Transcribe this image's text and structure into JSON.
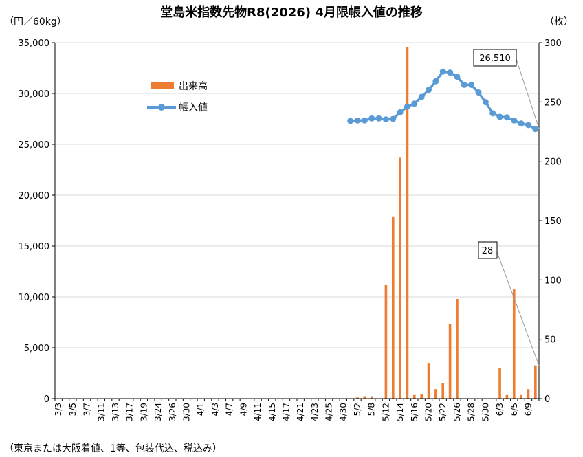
{
  "title": "堂島米指数先物R8(2026) 4月限帳入値の推移",
  "left_unit": "（円／60kg）",
  "right_unit": "（枚）",
  "footnote": "（東京または大阪着値、1等、包装代込、税込み）",
  "callouts": {
    "price": "26,510",
    "volume": "28"
  },
  "colors": {
    "volume": "#ED7D31",
    "price": "#5B9BD5"
  },
  "chart_data": {
    "type": "bar+line",
    "y_left": {
      "ylim": [
        0,
        35000
      ],
      "ticks": [
        0,
        5000,
        10000,
        15000,
        20000,
        25000,
        30000,
        35000
      ],
      "tick_labels": [
        "0",
        "5,000",
        "10,000",
        "15,000",
        "20,000",
        "25,000",
        "30,000",
        "35,000"
      ]
    },
    "y_right": {
      "ylim": [
        0,
        300
      ],
      "ticks": [
        0,
        50,
        100,
        150,
        200,
        250,
        300
      ],
      "tick_labels": [
        "0",
        "50",
        "100",
        "150",
        "200",
        "250",
        "300"
      ]
    },
    "x_labels": [
      "3/3",
      "3/5",
      "3/7",
      "3/11",
      "3/13",
      "3/17",
      "3/19",
      "3/24",
      "3/26",
      "3/30",
      "4/1",
      "4/3",
      "4/7",
      "4/9",
      "4/11",
      "4/15",
      "4/17",
      "4/21",
      "4/23",
      "4/25",
      "4/30",
      "5/2",
      "5/8",
      "5/12",
      "5/14",
      "5/16",
      "5/20",
      "5/22",
      "5/26",
      "5/28",
      "5/30",
      "6/3",
      "6/5",
      "6/9"
    ],
    "x_ticks": [
      {
        "label": "3/3",
        "index": 0
      },
      {
        "label": "3/5",
        "index": 2
      },
      {
        "label": "3/7",
        "index": 4
      },
      {
        "label": "3/11",
        "index": 6
      },
      {
        "label": "3/13",
        "index": 8
      },
      {
        "label": "3/17",
        "index": 10
      },
      {
        "label": "3/19",
        "index": 12
      },
      {
        "label": "3/24",
        "index": 14
      },
      {
        "label": "3/26",
        "index": 16
      },
      {
        "label": "3/30",
        "index": 18
      },
      {
        "label": "4/1",
        "index": 20
      },
      {
        "label": "4/3",
        "index": 22
      },
      {
        "label": "4/7",
        "index": 24
      },
      {
        "label": "4/9",
        "index": 26
      },
      {
        "label": "4/11",
        "index": 28
      },
      {
        "label": "4/15",
        "index": 30
      },
      {
        "label": "4/17",
        "index": 32
      },
      {
        "label": "4/21",
        "index": 34
      },
      {
        "label": "4/23",
        "index": 36
      },
      {
        "label": "4/25",
        "index": 38
      },
      {
        "label": "4/30",
        "index": 40
      },
      {
        "label": "5/2",
        "index": 42
      },
      {
        "label": "5/8",
        "index": 44
      },
      {
        "label": "5/12",
        "index": 46
      },
      {
        "label": "5/14",
        "index": 48
      },
      {
        "label": "5/16",
        "index": 50
      },
      {
        "label": "5/20",
        "index": 52
      },
      {
        "label": "5/22",
        "index": 54
      },
      {
        "label": "5/26",
        "index": 56
      },
      {
        "label": "5/28",
        "index": 58
      },
      {
        "label": "5/30",
        "index": 60
      },
      {
        "label": "6/3",
        "index": 62
      },
      {
        "label": "6/5",
        "index": 64
      },
      {
        "label": "6/9",
        "index": 66
      }
    ],
    "n_days": 68,
    "series": [
      {
        "name": "出来高",
        "type": "bar",
        "axis": "right",
        "points": [
          {
            "i": 42,
            "v": 1
          },
          {
            "i": 43,
            "v": 2
          },
          {
            "i": 44,
            "v": 2
          },
          {
            "i": 45,
            "v": 0
          },
          {
            "i": 46,
            "v": 96
          },
          {
            "i": 47,
            "v": 153
          },
          {
            "i": 48,
            "v": 203
          },
          {
            "i": 49,
            "v": 296
          },
          {
            "i": 50,
            "v": 3
          },
          {
            "i": 51,
            "v": 4
          },
          {
            "i": 52,
            "v": 30
          },
          {
            "i": 53,
            "v": 8
          },
          {
            "i": 54,
            "v": 13
          },
          {
            "i": 55,
            "v": 63
          },
          {
            "i": 56,
            "v": 84
          },
          {
            "i": 57,
            "v": 0
          },
          {
            "i": 58,
            "v": 0
          },
          {
            "i": 59,
            "v": 0
          },
          {
            "i": 60,
            "v": 0
          },
          {
            "i": 61,
            "v": 0
          },
          {
            "i": 62,
            "v": 26
          },
          {
            "i": 63,
            "v": 3
          },
          {
            "i": 64,
            "v": 92
          },
          {
            "i": 65,
            "v": 3
          },
          {
            "i": 66,
            "v": 8
          },
          {
            "i": 67,
            "v": 28
          }
        ]
      },
      {
        "name": "帳入値",
        "type": "line",
        "axis": "left",
        "points": [
          {
            "i": 41,
            "v": 27300
          },
          {
            "i": 42,
            "v": 27350
          },
          {
            "i": 43,
            "v": 27350
          },
          {
            "i": 44,
            "v": 27550
          },
          {
            "i": 45,
            "v": 27550
          },
          {
            "i": 46,
            "v": 27450
          },
          {
            "i": 47,
            "v": 27500
          },
          {
            "i": 48,
            "v": 28150
          },
          {
            "i": 49,
            "v": 28700
          },
          {
            "i": 50,
            "v": 29000
          },
          {
            "i": 51,
            "v": 29650
          },
          {
            "i": 52,
            "v": 30350
          },
          {
            "i": 53,
            "v": 31200
          },
          {
            "i": 54,
            "v": 32150
          },
          {
            "i": 55,
            "v": 32050
          },
          {
            "i": 56,
            "v": 31650
          },
          {
            "i": 57,
            "v": 30850
          },
          {
            "i": 58,
            "v": 30850
          },
          {
            "i": 59,
            "v": 30100
          },
          {
            "i": 60,
            "v": 29150
          },
          {
            "i": 61,
            "v": 28050
          },
          {
            "i": 62,
            "v": 27700
          },
          {
            "i": 63,
            "v": 27650
          },
          {
            "i": 64,
            "v": 27350
          },
          {
            "i": 65,
            "v": 27050
          },
          {
            "i": 66,
            "v": 26900
          },
          {
            "i": 67,
            "v": 26510
          }
        ]
      }
    ]
  }
}
